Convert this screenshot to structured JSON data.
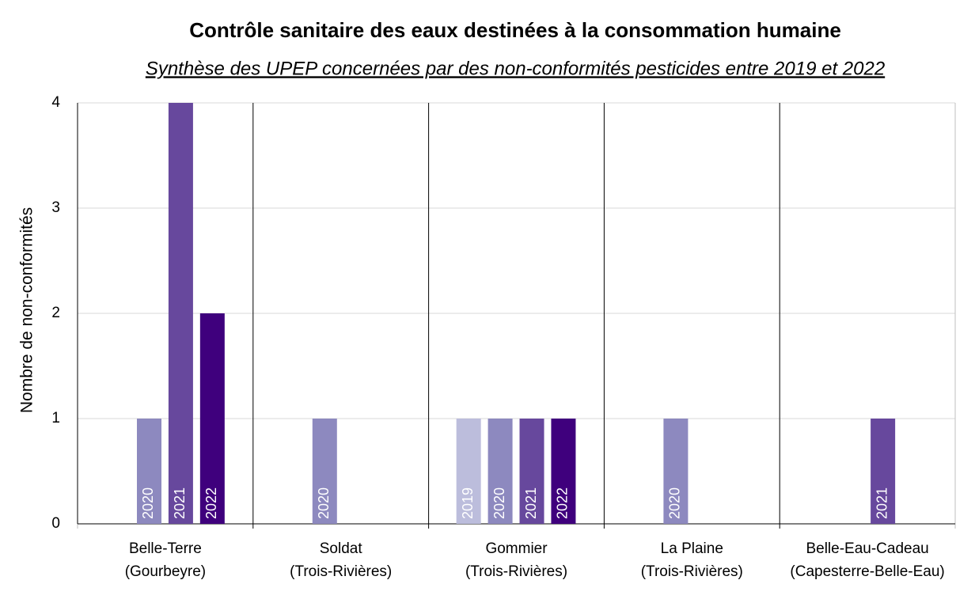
{
  "chart_data": {
    "type": "bar",
    "title": "Contrôle sanitaire des eaux destinées à la consommation humaine",
    "subtitle": "Synthèse des UPEP concernées par des non-conformités pesticides entre 2019 et 2022",
    "y_label": "Nombre de non-conformités",
    "categories": [
      [
        "Belle-Terre",
        "(Gourbeyre)"
      ],
      [
        "Soldat",
        "(Trois-Rivières)"
      ],
      [
        "Gommier",
        "(Trois-Rivières)"
      ],
      [
        "La Plaine",
        "(Trois-Rivières)"
      ],
      [
        "Belle-Eau-Cadeau",
        "(Capesterre-Belle-Eau)"
      ]
    ],
    "series": [
      {
        "name": "2019",
        "color": "#bcbddc",
        "values": [
          null,
          null,
          1,
          null,
          null
        ]
      },
      {
        "name": "2020",
        "color": "#8d89bf",
        "values": [
          1,
          1,
          1,
          1,
          null
        ]
      },
      {
        "name": "2021",
        "color": "#67489d",
        "values": [
          4,
          null,
          1,
          null,
          1
        ]
      },
      {
        "name": "2022",
        "color": "#3f007d",
        "values": [
          2,
          null,
          1,
          null,
          null
        ]
      }
    ],
    "ylim": [
      0,
      4
    ],
    "yticks": [
      0,
      1,
      2,
      3,
      4
    ],
    "grid": true
  }
}
